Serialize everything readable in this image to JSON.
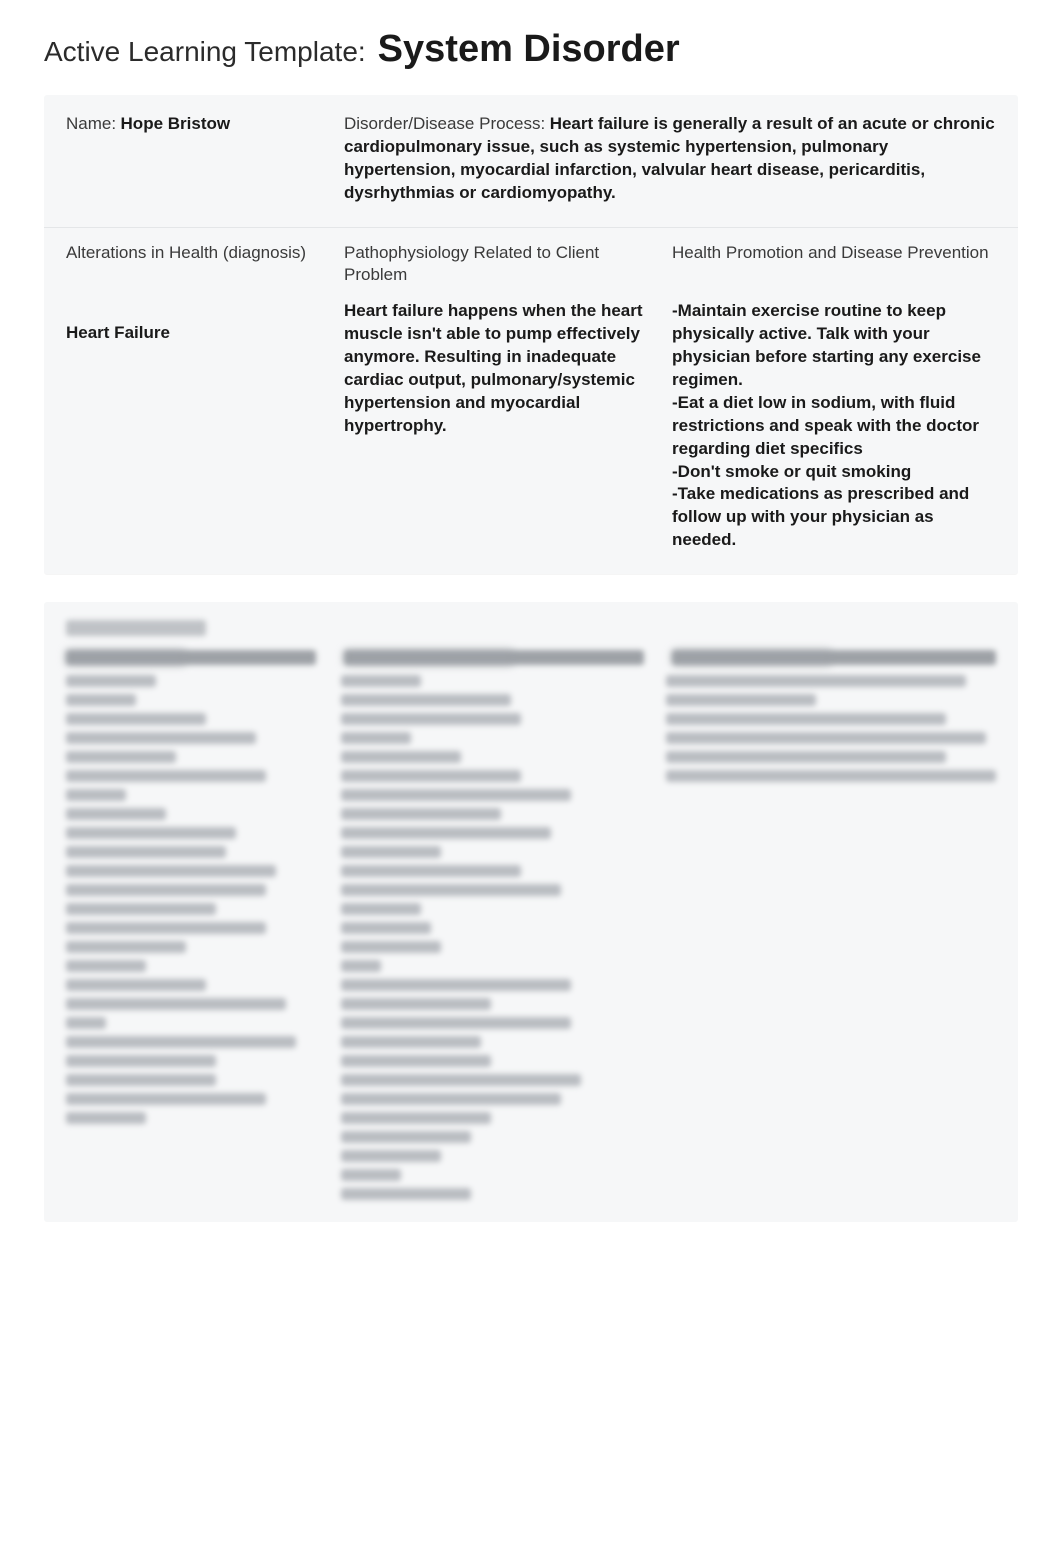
{
  "title": {
    "prefix": "Active Learning Template:",
    "main": "System Disorder"
  },
  "header": {
    "name_label": "Name:",
    "name_value": "Hope Bristow",
    "ddp_label": "Disorder/Disease Process:",
    "ddp_value": "Heart failure is generally a result of an acute or chronic cardiopulmonary issue, such as systemic hypertension, pulmonary hypertension, myocardial infarction, valvular heart disease, pericarditis, dysrhythmias or cardiomyopathy."
  },
  "columns": {
    "left_heading": "Alterations in Health (diagnosis)",
    "mid_heading": "Pathophysiology Related to Client Problem",
    "right_heading": "Health Promotion and Disease Prevention",
    "left_body": "Heart Failure",
    "mid_body": "Heart failure happens when the heart muscle isn't able to pump effectively anymore. Resulting in inadequate cardiac output, pulmonary/systemic hypertension and myocardial hypertrophy.",
    "right_body": "-Maintain exercise routine to keep physically active. Talk with your physician before starting any exercise regimen.\n-Eat a diet low in sodium, with fluid restrictions and speak with the doctor regarding diet specifics\n-Don't smoke or quit smoking\n-Take medications as prescribed and follow up with your physician as needed."
  },
  "colors": {
    "page_bg": "#ffffff",
    "card_bg": "#f6f7f8",
    "text_primary": "#1a1a1a",
    "text_secondary": "#3a3a3a",
    "divider": "#e4e6e8",
    "blur_dark": "#9da1a6",
    "blur_light": "#b9bcc1"
  },
  "typography": {
    "title_prefix_size_pt": 21,
    "title_main_size_pt": 29,
    "body_size_pt": 13
  },
  "blurred_section": {
    "col1_widths": [
      90,
      70,
      140,
      190,
      110,
      200,
      60,
      100,
      170,
      160,
      210,
      200,
      150,
      200,
      120,
      80,
      140,
      220,
      40,
      230,
      150,
      150,
      200,
      80
    ],
    "col2_widths": [
      80,
      170,
      180,
      70,
      120,
      180,
      230,
      160,
      210,
      100,
      180,
      220,
      80,
      90,
      100,
      40,
      230,
      150,
      230,
      140,
      150,
      240,
      220,
      150,
      130,
      100,
      60,
      130
    ],
    "col3_widths": [
      300,
      150,
      280,
      320,
      280,
      330
    ],
    "header_widths": [
      120,
      170,
      160
    ]
  }
}
